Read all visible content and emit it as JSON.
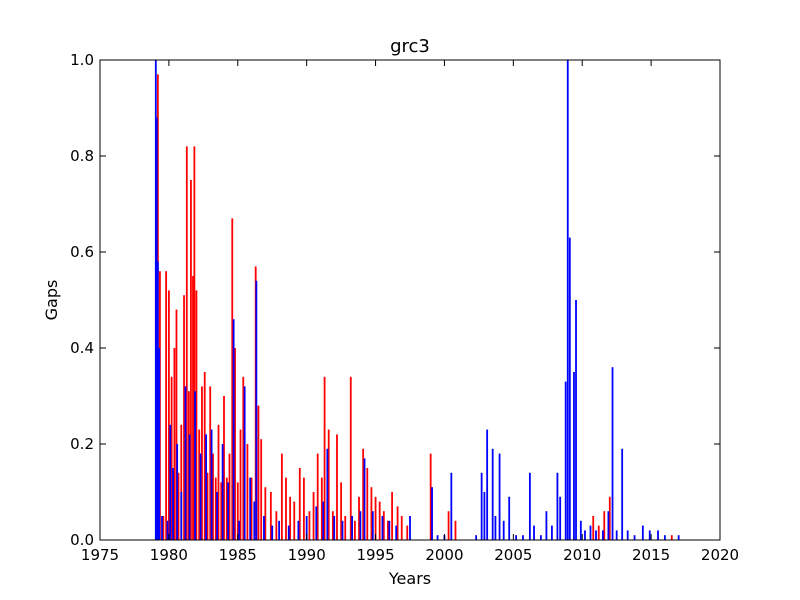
{
  "chart_data": {
    "type": "bar",
    "title": "grc3",
    "xlabel": "Years",
    "ylabel": "Gaps",
    "xlim": [
      1975,
      2020
    ],
    "ylim": [
      0.0,
      1.0
    ],
    "xticks": [
      1975,
      1980,
      1985,
      1990,
      1995,
      2000,
      2005,
      2010,
      2015,
      2020
    ],
    "xtick_labels": [
      "1975",
      "1980",
      "1985",
      "1990",
      "1995",
      "2000",
      "2005",
      "2010",
      "2015",
      "2020"
    ],
    "yticks": [
      0.0,
      0.2,
      0.4,
      0.6,
      0.8,
      1.0
    ],
    "ytick_labels": [
      "0.0",
      "0.2",
      "0.4",
      "0.6",
      "0.8",
      "1.0"
    ],
    "grid": false,
    "legend": "none",
    "series": [
      {
        "color": "#ff0000",
        "points": [
          [
            1979.2,
            0.97
          ],
          [
            1979.35,
            0.56
          ],
          [
            1979.6,
            0.05
          ],
          [
            1979.8,
            0.56
          ],
          [
            1980.0,
            0.52
          ],
          [
            1980.2,
            0.34
          ],
          [
            1980.4,
            0.4
          ],
          [
            1980.55,
            0.48
          ],
          [
            1980.7,
            0.14
          ],
          [
            1980.9,
            0.24
          ],
          [
            1981.1,
            0.51
          ],
          [
            1981.3,
            0.82
          ],
          [
            1981.45,
            0.31
          ],
          [
            1981.6,
            0.75
          ],
          [
            1981.75,
            0.55
          ],
          [
            1981.85,
            0.82
          ],
          [
            1982.0,
            0.52
          ],
          [
            1982.2,
            0.23
          ],
          [
            1982.4,
            0.32
          ],
          [
            1982.6,
            0.35
          ],
          [
            1982.8,
            0.14
          ],
          [
            1983.0,
            0.32
          ],
          [
            1983.2,
            0.18
          ],
          [
            1983.4,
            0.13
          ],
          [
            1983.6,
            0.24
          ],
          [
            1983.8,
            0.12
          ],
          [
            1984.0,
            0.3
          ],
          [
            1984.2,
            0.13
          ],
          [
            1984.4,
            0.18
          ],
          [
            1984.6,
            0.67
          ],
          [
            1984.8,
            0.4
          ],
          [
            1985.0,
            0.12
          ],
          [
            1985.2,
            0.23
          ],
          [
            1985.4,
            0.34
          ],
          [
            1985.7,
            0.2
          ],
          [
            1986.0,
            0.13
          ],
          [
            1986.3,
            0.57
          ],
          [
            1986.5,
            0.28
          ],
          [
            1986.7,
            0.21
          ],
          [
            1987.0,
            0.11
          ],
          [
            1987.4,
            0.1
          ],
          [
            1987.8,
            0.06
          ],
          [
            1988.2,
            0.18
          ],
          [
            1988.5,
            0.13
          ],
          [
            1988.8,
            0.09
          ],
          [
            1989.1,
            0.08
          ],
          [
            1989.5,
            0.15
          ],
          [
            1989.8,
            0.13
          ],
          [
            1990.2,
            0.06
          ],
          [
            1990.5,
            0.1
          ],
          [
            1990.8,
            0.18
          ],
          [
            1991.1,
            0.13
          ],
          [
            1991.3,
            0.34
          ],
          [
            1991.6,
            0.23
          ],
          [
            1991.9,
            0.06
          ],
          [
            1992.2,
            0.22
          ],
          [
            1992.5,
            0.12
          ],
          [
            1992.8,
            0.05
          ],
          [
            1993.2,
            0.34
          ],
          [
            1993.5,
            0.04
          ],
          [
            1993.8,
            0.09
          ],
          [
            1994.1,
            0.19
          ],
          [
            1994.4,
            0.15
          ],
          [
            1994.7,
            0.11
          ],
          [
            1995.0,
            0.09
          ],
          [
            1995.3,
            0.08
          ],
          [
            1995.6,
            0.06
          ],
          [
            1995.9,
            0.04
          ],
          [
            1996.2,
            0.1
          ],
          [
            1996.6,
            0.07
          ],
          [
            1996.9,
            0.05
          ],
          [
            1997.3,
            0.03
          ],
          [
            1999.0,
            0.18
          ],
          [
            2000.3,
            0.06
          ],
          [
            2000.8,
            0.04
          ],
          [
            2010.8,
            0.05
          ],
          [
            2011.2,
            0.03
          ],
          [
            2011.6,
            0.06
          ],
          [
            2012.0,
            0.09
          ],
          [
            2016.5,
            0.01
          ]
        ]
      },
      {
        "color": "#0000ff",
        "points": [
          [
            1979.05,
            1.0
          ],
          [
            1979.12,
            0.88
          ],
          [
            1979.2,
            0.58
          ],
          [
            1979.3,
            0.4
          ],
          [
            1979.5,
            0.05
          ],
          [
            1979.9,
            0.04
          ],
          [
            1980.1,
            0.24
          ],
          [
            1980.3,
            0.15
          ],
          [
            1980.6,
            0.2
          ],
          [
            1980.9,
            0.1
          ],
          [
            1981.2,
            0.32
          ],
          [
            1981.5,
            0.22
          ],
          [
            1981.9,
            0.31
          ],
          [
            1982.3,
            0.18
          ],
          [
            1982.7,
            0.22
          ],
          [
            1983.1,
            0.23
          ],
          [
            1983.5,
            0.1
          ],
          [
            1983.9,
            0.2
          ],
          [
            1984.3,
            0.12
          ],
          [
            1984.7,
            0.46
          ],
          [
            1985.1,
            0.04
          ],
          [
            1985.5,
            0.32
          ],
          [
            1985.9,
            0.13
          ],
          [
            1986.2,
            0.08
          ],
          [
            1986.35,
            0.54
          ],
          [
            1986.9,
            0.05
          ],
          [
            1987.5,
            0.03
          ],
          [
            1988.0,
            0.04
          ],
          [
            1988.7,
            0.03
          ],
          [
            1989.4,
            0.04
          ],
          [
            1990.0,
            0.05
          ],
          [
            1990.7,
            0.07
          ],
          [
            1991.2,
            0.08
          ],
          [
            1991.5,
            0.19
          ],
          [
            1992.0,
            0.05
          ],
          [
            1992.6,
            0.04
          ],
          [
            1993.3,
            0.05
          ],
          [
            1993.9,
            0.06
          ],
          [
            1994.2,
            0.17
          ],
          [
            1994.8,
            0.06
          ],
          [
            1995.5,
            0.05
          ],
          [
            1996.0,
            0.04
          ],
          [
            1996.5,
            0.03
          ],
          [
            1997.5,
            0.05
          ],
          [
            1999.1,
            0.11
          ],
          [
            1999.5,
            0.01
          ],
          [
            2000.0,
            0.01
          ],
          [
            2000.5,
            0.14
          ],
          [
            2002.3,
            0.01
          ],
          [
            2002.7,
            0.14
          ],
          [
            2002.9,
            0.1
          ],
          [
            2003.1,
            0.23
          ],
          [
            2003.5,
            0.19
          ],
          [
            2003.7,
            0.05
          ],
          [
            2004.0,
            0.18
          ],
          [
            2004.3,
            0.04
          ],
          [
            2004.7,
            0.09
          ],
          [
            2005.2,
            0.01
          ],
          [
            2005.7,
            0.01
          ],
          [
            2006.2,
            0.14
          ],
          [
            2006.5,
            0.03
          ],
          [
            2007.0,
            0.01
          ],
          [
            2007.4,
            0.06
          ],
          [
            2007.8,
            0.03
          ],
          [
            2008.2,
            0.14
          ],
          [
            2008.4,
            0.09
          ],
          [
            2008.8,
            0.33
          ],
          [
            2008.95,
            1.0
          ],
          [
            2009.1,
            0.63
          ],
          [
            2009.4,
            0.35
          ],
          [
            2009.55,
            0.5
          ],
          [
            2009.9,
            0.04
          ],
          [
            2010.2,
            0.02
          ],
          [
            2010.6,
            0.03
          ],
          [
            2011.0,
            0.02
          ],
          [
            2011.5,
            0.02
          ],
          [
            2011.9,
            0.06
          ],
          [
            2012.2,
            0.36
          ],
          [
            2012.5,
            0.02
          ],
          [
            2012.9,
            0.19
          ],
          [
            2013.3,
            0.02
          ],
          [
            2013.8,
            0.01
          ],
          [
            2014.4,
            0.03
          ],
          [
            2014.9,
            0.02
          ],
          [
            2015.5,
            0.02
          ],
          [
            2016.0,
            0.01
          ],
          [
            2017.0,
            0.01
          ]
        ]
      }
    ]
  }
}
